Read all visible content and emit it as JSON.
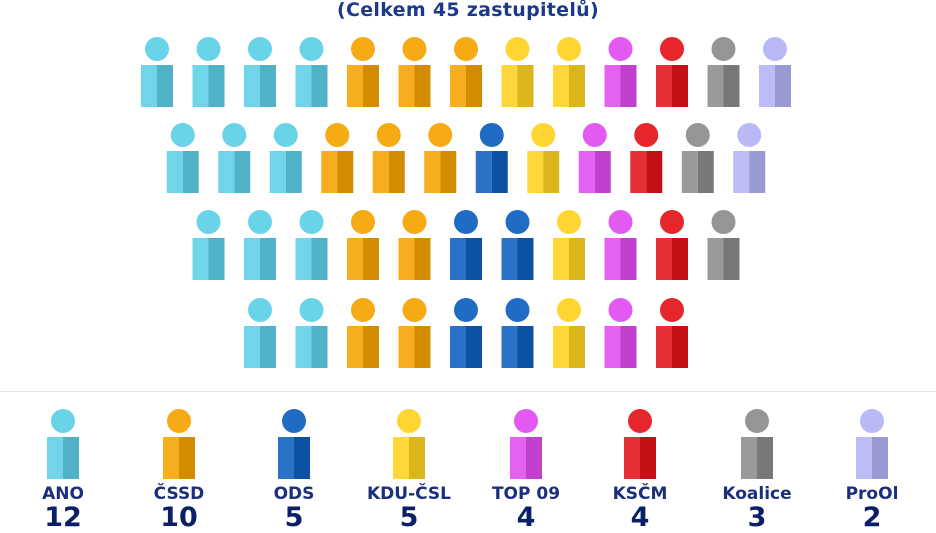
{
  "subtitle": "(Celkem 45 zastupitelů)",
  "chart_data": {
    "type": "pictograph",
    "total": 45,
    "unit": "zastupitelů",
    "categories": [
      "ANO",
      "ČSSD",
      "ODS",
      "KDU-ČSL",
      "TOP 09",
      "KSČM",
      "Koalice",
      "ProOl"
    ],
    "values": [
      12,
      10,
      5,
      5,
      4,
      4,
      3,
      2
    ],
    "colors": [
      "#5ccfe6",
      "#f5a300",
      "#0d5fbf",
      "#ffd21f",
      "#e04cf0",
      "#e3131b",
      "#8c8c8c",
      "#b3b3f5"
    ],
    "rows": [
      [
        "ANO",
        "ANO",
        "ANO",
        "ANO",
        "ČSSD",
        "ČSSD",
        "ČSSD",
        "KDU-ČSL",
        "KDU-ČSL",
        "TOP 09",
        "KSČM",
        "Koalice",
        "ProOl"
      ],
      [
        "ANO",
        "ANO",
        "ANO",
        "ČSSD",
        "ČSSD",
        "ČSSD",
        "ODS",
        "KDU-ČSL",
        "TOP 09",
        "KSČM",
        "Koalice",
        "ProOl"
      ],
      [
        "ANO",
        "ANO",
        "ANO",
        "ČSSD",
        "ČSSD",
        "ODS",
        "ODS",
        "KDU-ČSL",
        "TOP 09",
        "KSČM",
        "Koalice"
      ],
      [
        "ANO",
        "ANO",
        "ČSSD",
        "ČSSD",
        "ODS",
        "ODS",
        "KDU-ČSL",
        "TOP 09",
        "KSČM"
      ]
    ]
  }
}
